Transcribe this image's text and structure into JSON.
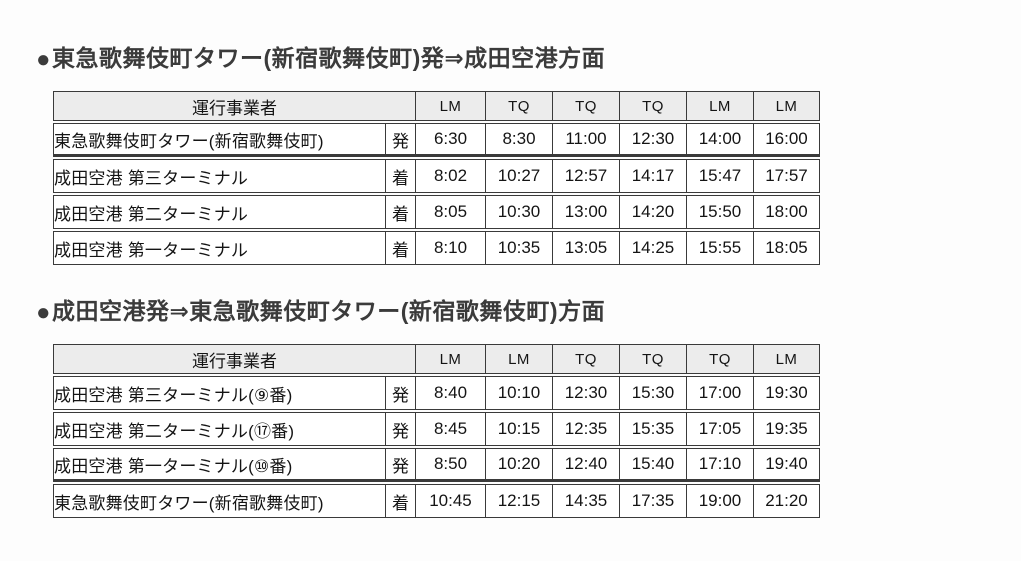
{
  "page": {
    "background": "#fdfdfd",
    "text_color": "#141414",
    "title_color": "#3b3b3b",
    "border_color": "#3a3a3a",
    "header_bg": "#ececec"
  },
  "tables": [
    {
      "bullet": "●",
      "title": "東急歌舞伎町タワー(新宿歌舞伎町)発⇒成田空港方面",
      "operator_header": "運行事業者",
      "carriers": [
        "LM",
        "TQ",
        "TQ",
        "TQ",
        "LM",
        "LM"
      ],
      "rows": [
        {
          "station": "東急歌舞伎町タワー(新宿歌舞伎町)",
          "type": "発",
          "times": [
            "6:30",
            "8:30",
            "11:00",
            "12:30",
            "14:00",
            "16:00"
          ]
        },
        {
          "station": "成田空港 第三ターミナル",
          "type": "着",
          "times": [
            "8:02",
            "10:27",
            "12:57",
            "14:17",
            "15:47",
            "17:57"
          ]
        },
        {
          "station": "成田空港 第二ターミナル",
          "type": "着",
          "times": [
            "8:05",
            "10:30",
            "13:00",
            "14:20",
            "15:50",
            "18:00"
          ]
        },
        {
          "station": "成田空港 第一ターミナル",
          "type": "着",
          "times": [
            "8:10",
            "10:35",
            "13:05",
            "14:25",
            "15:55",
            "18:05"
          ]
        }
      ]
    },
    {
      "bullet": "●",
      "title": "成田空港発⇒東急歌舞伎町タワー(新宿歌舞伎町)方面",
      "operator_header": "運行事業者",
      "carriers": [
        "LM",
        "LM",
        "TQ",
        "TQ",
        "TQ",
        "LM"
      ],
      "rows": [
        {
          "station": "成田空港 第三ターミナル(⑨番)",
          "type": "発",
          "times": [
            "8:40",
            "10:10",
            "12:30",
            "15:30",
            "17:00",
            "19:30"
          ]
        },
        {
          "station": "成田空港 第二ターミナル(⑰番)",
          "type": "発",
          "times": [
            "8:45",
            "10:15",
            "12:35",
            "15:35",
            "17:05",
            "19:35"
          ]
        },
        {
          "station": "成田空港 第一ターミナル(⑩番)",
          "type": "発",
          "times": [
            "8:50",
            "10:20",
            "12:40",
            "15:40",
            "17:10",
            "19:40"
          ]
        },
        {
          "station": "東急歌舞伎町タワー(新宿歌舞伎町)",
          "type": "着",
          "times": [
            "10:45",
            "12:15",
            "14:35",
            "17:35",
            "19:00",
            "21:20"
          ]
        }
      ]
    }
  ]
}
